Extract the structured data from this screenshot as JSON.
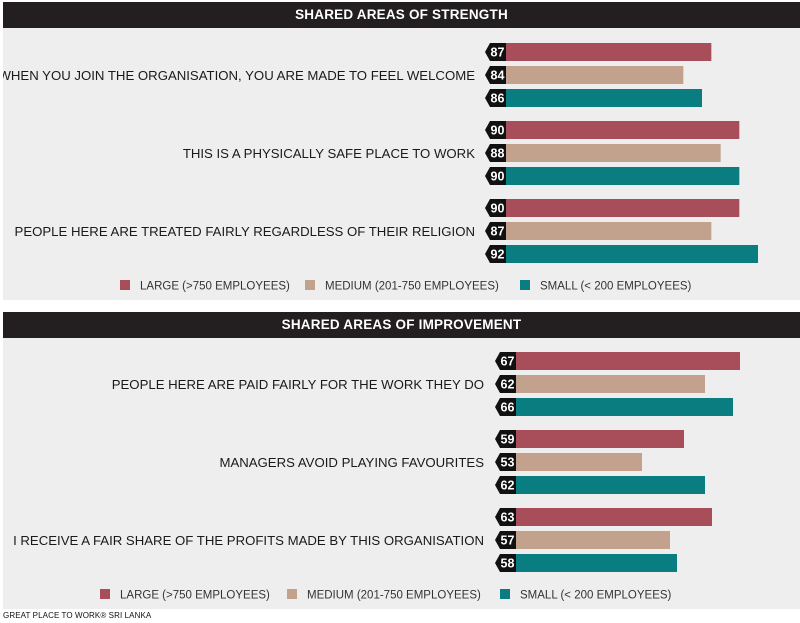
{
  "colors": {
    "large": "#a84d5a",
    "medium": "#c2a28d",
    "small": "#0a7d80",
    "badge": "#111111",
    "header": "#231f20"
  },
  "legend": [
    {
      "key": "large",
      "label": "LARGE (>750 EMPLOYEES)"
    },
    {
      "key": "medium",
      "label": "MEDIUM (201-750 EMPLOYEES)"
    },
    {
      "key": "small",
      "label": "SMALL (< 200 EMPLOYEES)"
    }
  ],
  "footer": "GREAT PLACE TO WORK® SRI LANKA",
  "chart_data": [
    {
      "type": "bar",
      "orientation": "horizontal",
      "title": "SHARED AREAS OF STRENGTH",
      "categories": [
        "WHEN YOU JOIN THE ORGANISATION, YOU ARE MADE TO FEEL WELCOME",
        "THIS IS A PHYSICALLY SAFE PLACE TO WORK",
        "PEOPLE HERE ARE TREATED FAIRLY REGARDLESS OF THEIR RELIGION"
      ],
      "series": [
        {
          "name": "LARGE (>750 EMPLOYEES)",
          "key": "large",
          "values": [
            87,
            90,
            90
          ]
        },
        {
          "name": "MEDIUM (201-750 EMPLOYEES)",
          "key": "medium",
          "values": [
            84,
            88,
            87
          ]
        },
        {
          "name": "SMALL (< 200 EMPLOYEES)",
          "key": "small",
          "values": [
            86,
            90,
            92
          ]
        }
      ],
      "xlim": [
        0,
        100
      ],
      "legend_position": "bottom"
    },
    {
      "type": "bar",
      "orientation": "horizontal",
      "title": "SHARED AREAS OF IMPROVEMENT",
      "categories": [
        "PEOPLE HERE ARE PAID FAIRLY FOR THE WORK THEY DO",
        "MANAGERS AVOID PLAYING FAVOURITES",
        "I RECEIVE A FAIR SHARE OF THE PROFITS MADE BY THIS ORGANISATION"
      ],
      "series": [
        {
          "name": "LARGE (>750 EMPLOYEES)",
          "key": "large",
          "values": [
            67,
            59,
            63
          ]
        },
        {
          "name": "MEDIUM (201-750 EMPLOYEES)",
          "key": "medium",
          "values": [
            62,
            53,
            57
          ]
        },
        {
          "name": "SMALL (< 200 EMPLOYEES)",
          "key": "small",
          "values": [
            66,
            62,
            58
          ]
        }
      ],
      "xlim": [
        0,
        100
      ],
      "legend_position": "bottom"
    }
  ]
}
